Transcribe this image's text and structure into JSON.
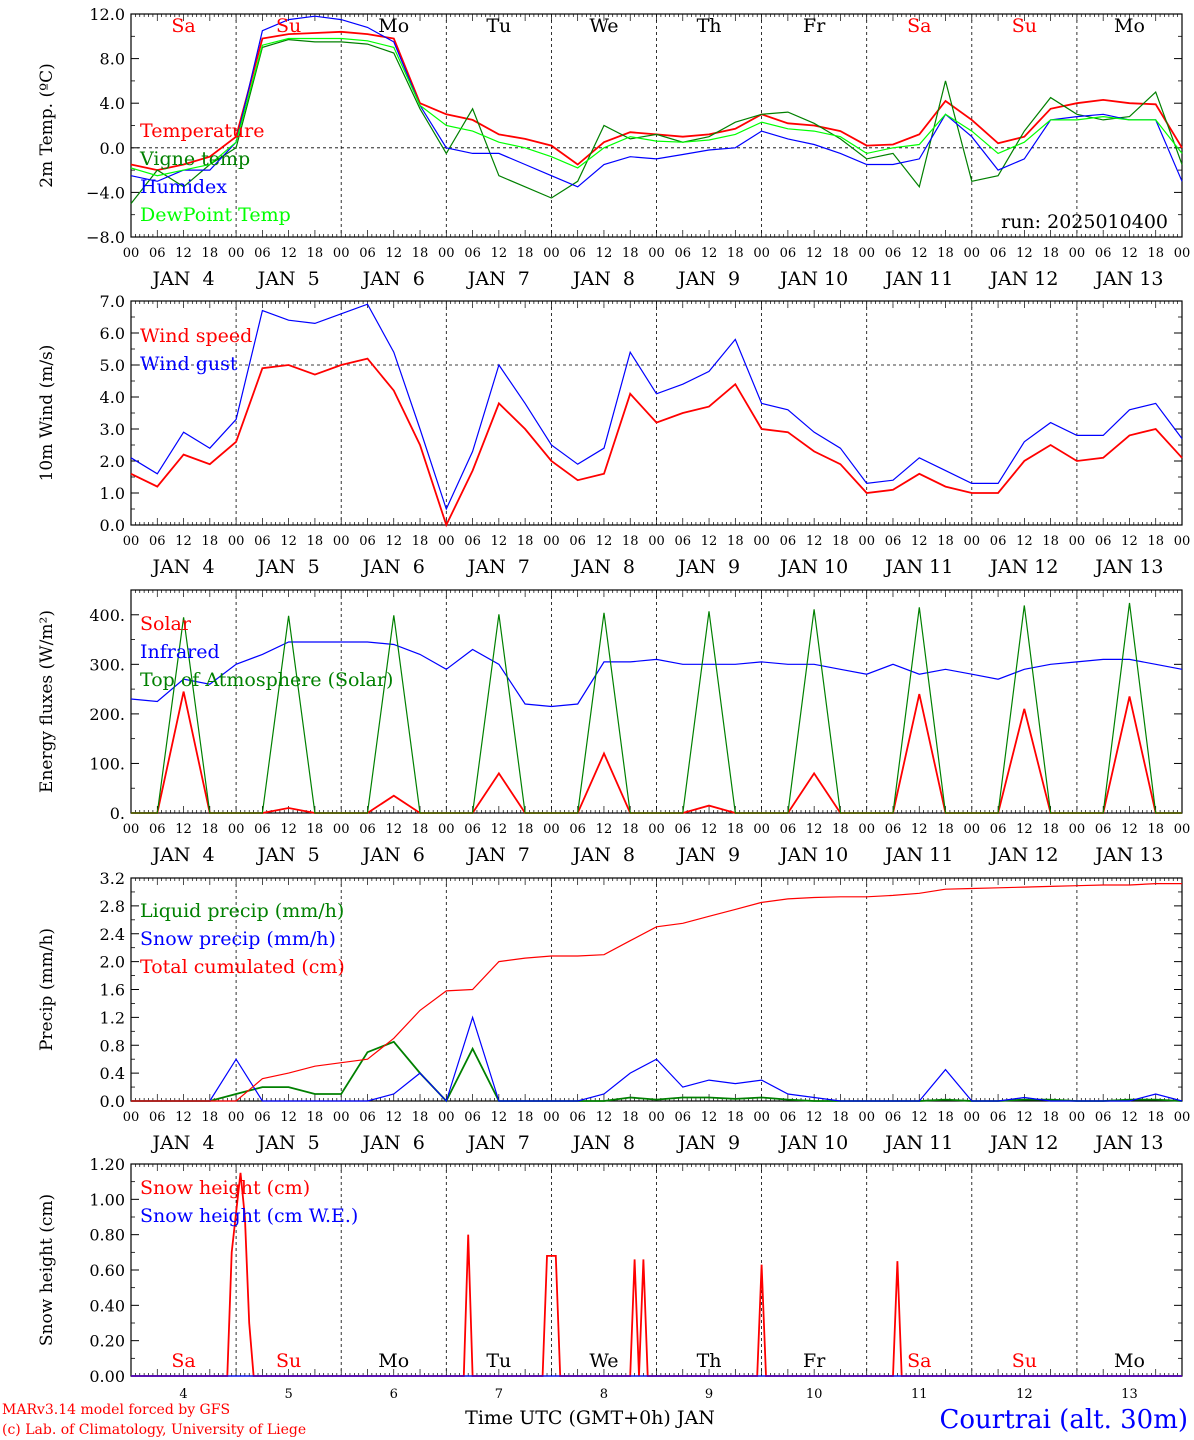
{
  "run_label": "run: 2025010400",
  "footer": {
    "credit_line1": "MARv3.14 model forced by GFS",
    "credit_line2": "(c) Lab. of Climatology, University of Liege",
    "xlabel": "Time UTC (GMT+0h) JAN",
    "station": "Courtrai (alt. 30m)"
  },
  "axis": {
    "hour_ticks": [
      "00",
      "06",
      "12",
      "18",
      "00",
      "06",
      "12",
      "18",
      "00",
      "06",
      "12",
      "18",
      "00",
      "06",
      "12",
      "18",
      "00",
      "06",
      "12",
      "18",
      "00",
      "06",
      "12",
      "18",
      "00",
      "06",
      "12",
      "18",
      "00",
      "06",
      "12",
      "18",
      "00",
      "06",
      "12",
      "18",
      "00",
      "06",
      "12",
      "18",
      "00"
    ],
    "date_labels": [
      "JAN  4",
      "JAN  5",
      "JAN  6",
      "JAN  7",
      "JAN  8",
      "JAN  9",
      "JAN 10",
      "JAN 11",
      "JAN 12",
      "JAN 13"
    ],
    "day_names": [
      "Sa",
      "Su",
      "Mo",
      "Tu",
      "We",
      "Th",
      "Fr",
      "Sa",
      "Su",
      "Mo"
    ],
    "day_numbers": [
      "4",
      "5",
      "6",
      "7",
      "8",
      "9",
      "10",
      "11",
      "12",
      "13"
    ],
    "weekend_color": "#ff0000"
  },
  "chart_data": [
    {
      "type": "line",
      "ylabel": "2m Temp. (ºC)",
      "ylim": [
        -8,
        12
      ],
      "yticks": [
        "12.0",
        "8.0",
        "4.0",
        "0.0",
        "−4.0",
        "−8.0"
      ],
      "x_unit": "hours since 2025-01-04 00 UTC",
      "x": [
        0,
        6,
        12,
        18,
        24,
        30,
        36,
        42,
        48,
        54,
        60,
        66,
        72,
        78,
        84,
        90,
        96,
        102,
        108,
        114,
        120,
        126,
        132,
        138,
        144,
        150,
        156,
        162,
        168,
        174,
        180,
        186,
        192,
        198,
        204,
        210,
        216,
        222,
        228,
        234,
        240
      ],
      "series": [
        {
          "name": "Temperature",
          "color": "#ff0000",
          "values": [
            -1.5,
            -2.0,
            -1.5,
            -0.8,
            1.0,
            9.8,
            10.2,
            10.3,
            10.4,
            10.2,
            9.8,
            4.0,
            3.0,
            2.5,
            1.2,
            0.8,
            0.2,
            -1.5,
            0.5,
            1.4,
            1.2,
            1.0,
            1.2,
            1.7,
            3.0,
            2.2,
            2.0,
            1.5,
            0.2,
            0.3,
            1.2,
            4.2,
            2.5,
            0.4,
            1.0,
            3.5,
            4.0,
            4.3,
            4.0,
            3.9,
            0.0
          ]
        },
        {
          "name": "Vigne temp",
          "color": "#008000",
          "values": [
            -5.0,
            -2.0,
            -3.5,
            -1.5,
            0.0,
            9.0,
            9.7,
            9.5,
            9.5,
            9.3,
            8.5,
            3.5,
            -0.5,
            3.5,
            -2.5,
            -3.5,
            -4.5,
            -3.0,
            2.0,
            0.8,
            1.2,
            0.5,
            1.0,
            2.3,
            3.0,
            3.2,
            2.2,
            0.8,
            -1.0,
            -0.5,
            -3.5,
            6.0,
            -3.0,
            -2.5,
            1.5,
            4.5,
            3.0,
            2.5,
            2.8,
            5.0,
            -1.5
          ]
        },
        {
          "name": "Humidex",
          "color": "#0000ff",
          "values": [
            -2.5,
            -3.0,
            -2.0,
            -2.0,
            0.5,
            10.5,
            11.5,
            11.8,
            11.5,
            10.8,
            9.5,
            3.8,
            0.0,
            -0.5,
            -0.5,
            -1.5,
            -2.5,
            -3.5,
            -1.5,
            -0.8,
            -1.0,
            -0.6,
            -0.2,
            0.0,
            1.5,
            0.8,
            0.3,
            -0.5,
            -1.5,
            -1.5,
            -1.0,
            3.0,
            1.0,
            -2.0,
            -1.0,
            2.5,
            2.8,
            3.0,
            2.5,
            2.5,
            -3.0
          ]
        },
        {
          "name": "DewPoint Temp",
          "color": "#00ff00",
          "values": [
            -1.8,
            -2.5,
            -2.0,
            -1.5,
            0.5,
            9.2,
            9.8,
            9.8,
            9.8,
            9.6,
            9.0,
            3.8,
            2.0,
            1.5,
            0.5,
            0.0,
            -0.8,
            -1.8,
            0.0,
            1.0,
            0.6,
            0.5,
            0.7,
            1.2,
            2.3,
            1.7,
            1.5,
            1.0,
            -0.5,
            0.0,
            0.3,
            3.0,
            1.5,
            -0.5,
            0.5,
            2.5,
            2.5,
            2.8,
            2.5,
            2.5,
            -0.5
          ]
        }
      ]
    },
    {
      "type": "line",
      "ylabel": "10m Wind (m/s)",
      "ylim": [
        0,
        7
      ],
      "yticks": [
        "7.0",
        "6.0",
        "5.0",
        "4.0",
        "3.0",
        "2.0",
        "1.0",
        "0.0"
      ],
      "x_unit": "hours since 2025-01-04 00 UTC",
      "x": [
        0,
        6,
        12,
        18,
        24,
        30,
        36,
        42,
        48,
        54,
        60,
        66,
        72,
        78,
        84,
        90,
        96,
        102,
        108,
        114,
        120,
        126,
        132,
        138,
        144,
        150,
        156,
        162,
        168,
        174,
        180,
        186,
        192,
        198,
        204,
        210,
        216,
        222,
        228,
        234,
        240
      ],
      "series": [
        {
          "name": "Wind speed",
          "color": "#ff0000",
          "values": [
            1.6,
            1.2,
            2.2,
            1.9,
            2.6,
            4.9,
            5.0,
            4.7,
            5.0,
            5.2,
            4.2,
            2.5,
            0.0,
            1.7,
            3.8,
            3.0,
            2.0,
            1.4,
            1.6,
            4.1,
            3.2,
            3.5,
            3.7,
            4.4,
            3.0,
            2.9,
            2.3,
            1.9,
            1.0,
            1.1,
            1.6,
            1.2,
            1.0,
            1.0,
            2.0,
            2.5,
            2.0,
            2.1,
            2.8,
            3.0,
            2.1
          ]
        },
        {
          "name": "Wind gust",
          "color": "#0000ff",
          "values": [
            2.1,
            1.6,
            2.9,
            2.4,
            3.3,
            6.7,
            6.4,
            6.3,
            6.6,
            6.9,
            5.4,
            3.0,
            0.5,
            2.3,
            5.0,
            3.8,
            2.5,
            1.9,
            2.4,
            5.4,
            4.1,
            4.4,
            4.8,
            5.8,
            3.8,
            3.6,
            2.9,
            2.4,
            1.3,
            1.4,
            2.1,
            1.7,
            1.3,
            1.3,
            2.6,
            3.2,
            2.8,
            2.8,
            3.6,
            3.8,
            2.7
          ]
        }
      ]
    },
    {
      "type": "line",
      "ylabel": "Energy fluxes (W/m²)",
      "ylim": [
        0,
        450
      ],
      "yticks": [
        "400.",
        "300.",
        "200.",
        "100.",
        "0."
      ],
      "x_unit": "hours since 2025-01-04 00 UTC",
      "x": [
        0,
        6,
        12,
        18,
        24,
        30,
        36,
        42,
        48,
        54,
        60,
        66,
        72,
        78,
        84,
        90,
        96,
        102,
        108,
        114,
        120,
        126,
        132,
        138,
        144,
        150,
        156,
        162,
        168,
        174,
        180,
        186,
        192,
        198,
        204,
        210,
        216,
        222,
        228,
        234,
        240
      ],
      "series": [
        {
          "name": "Solar",
          "color": "#ff0000",
          "values": [
            0,
            0,
            245,
            0,
            0,
            0,
            10,
            0,
            0,
            0,
            35,
            0,
            0,
            0,
            80,
            0,
            0,
            0,
            120,
            0,
            0,
            0,
            15,
            0,
            0,
            0,
            80,
            0,
            0,
            0,
            240,
            0,
            0,
            0,
            210,
            0,
            0,
            0,
            235,
            0,
            0
          ]
        },
        {
          "name": "Infrared",
          "color": "#0000ff",
          "values": [
            230,
            225,
            270,
            260,
            300,
            320,
            345,
            345,
            345,
            345,
            340,
            320,
            290,
            330,
            300,
            220,
            215,
            220,
            305,
            305,
            310,
            300,
            300,
            300,
            305,
            300,
            300,
            290,
            280,
            300,
            280,
            290,
            280,
            270,
            290,
            300,
            305,
            310,
            310,
            300,
            290
          ]
        },
        {
          "name": "Top of Atmosphere (Solar)",
          "color": "#008000",
          "values": [
            0,
            0,
            395,
            0,
            0,
            0,
            398,
            0,
            0,
            0,
            399,
            0,
            0,
            0,
            401,
            0,
            0,
            0,
            404,
            0,
            0,
            0,
            407,
            0,
            0,
            0,
            411,
            0,
            0,
            0,
            415,
            0,
            0,
            0,
            419,
            0,
            0,
            0,
            424,
            0,
            0
          ]
        }
      ]
    },
    {
      "type": "line",
      "ylabel": "Precip (mm/h)",
      "ylim": [
        0,
        3.2
      ],
      "yticks": [
        "3.2",
        "2.8",
        "2.4",
        "2.0",
        "1.6",
        "1.2",
        "0.8",
        "0.4",
        "0.0"
      ],
      "x_unit": "hours since 2025-01-04 00 UTC",
      "x": [
        0,
        6,
        12,
        18,
        24,
        30,
        36,
        42,
        48,
        54,
        60,
        66,
        72,
        78,
        84,
        90,
        96,
        102,
        108,
        114,
        120,
        126,
        132,
        138,
        144,
        150,
        156,
        162,
        168,
        174,
        180,
        186,
        192,
        198,
        204,
        210,
        216,
        222,
        228,
        234,
        240
      ],
      "series": [
        {
          "name": "Liquid precip (mm/h)",
          "color": "#008000",
          "values": [
            0,
            0,
            0,
            0,
            0.1,
            0.2,
            0.2,
            0.1,
            0.1,
            0.7,
            0.85,
            0.4,
            0,
            0.75,
            0,
            0,
            0,
            0,
            0,
            0.05,
            0.02,
            0.05,
            0.05,
            0.03,
            0.05,
            0.02,
            0,
            0,
            0,
            0,
            0,
            0.02,
            0,
            0,
            0.02,
            0.02,
            0,
            0,
            0.02,
            0.02,
            0
          ]
        },
        {
          "name": "Snow precip (mm/h)",
          "color": "#0000ff",
          "values": [
            0,
            0,
            0,
            0,
            0.6,
            0,
            0,
            0,
            0,
            0,
            0.1,
            0.4,
            0,
            1.2,
            0,
            0,
            0,
            0,
            0.1,
            0.4,
            0.6,
            0.2,
            0.3,
            0.25,
            0.3,
            0.1,
            0.05,
            0,
            0,
            0,
            0,
            0.45,
            0,
            0,
            0.05,
            0,
            0,
            0,
            0,
            0.1,
            0
          ]
        },
        {
          "name": "Total cumulated (cm)",
          "color": "#ff0000",
          "values": [
            0,
            0,
            0,
            0,
            0,
            0.32,
            0.4,
            0.5,
            0.55,
            0.6,
            0.9,
            1.3,
            1.58,
            1.6,
            2.0,
            2.05,
            2.08,
            2.08,
            2.1,
            2.3,
            2.5,
            2.55,
            2.65,
            2.75,
            2.85,
            2.9,
            2.92,
            2.93,
            2.93,
            2.95,
            2.98,
            3.04,
            3.05,
            3.06,
            3.07,
            3.08,
            3.09,
            3.1,
            3.1,
            3.12,
            3.12
          ]
        }
      ]
    },
    {
      "type": "line",
      "ylabel": "Snow height (cm)",
      "ylim": [
        0,
        1.2
      ],
      "yticks": [
        "1.20",
        "1.00",
        "0.80",
        "0.60",
        "0.40",
        "0.20",
        "0.00"
      ],
      "x_unit": "hours since 2025-01-04 00 UTC",
      "x": [
        0,
        6,
        12,
        18,
        22,
        23,
        25,
        26,
        27,
        28,
        30,
        36,
        42,
        48,
        54,
        60,
        66,
        72,
        76,
        77,
        78,
        84,
        90,
        94,
        95,
        97,
        98,
        99,
        108,
        114,
        115,
        116,
        117,
        118,
        119,
        120,
        126,
        132,
        138,
        143,
        144,
        145,
        150,
        156,
        162,
        168,
        174,
        175,
        176,
        177,
        180,
        186,
        192,
        198,
        204,
        210,
        216,
        222,
        228,
        234,
        240
      ],
      "series": [
        {
          "name": "Snow height (cm)",
          "color": "#ff0000",
          "values": [
            0,
            0,
            0,
            0,
            0,
            0.7,
            1.15,
            0.9,
            0.3,
            0,
            0,
            0,
            0,
            0,
            0,
            0,
            0,
            0,
            0,
            0.8,
            0,
            0,
            0,
            0,
            0.68,
            0.68,
            0,
            0,
            0,
            0,
            0.66,
            0,
            0.66,
            0,
            0,
            0,
            0,
            0,
            0,
            0,
            0.63,
            0,
            0,
            0,
            0,
            0,
            0,
            0.65,
            0,
            0,
            0,
            0,
            0,
            0,
            0,
            0,
            0,
            0,
            0,
            0,
            0
          ]
        },
        {
          "name": "Snow height (cm W.E.)",
          "color": "#0000ff",
          "values": [
            0,
            0,
            0,
            0,
            0,
            0,
            0,
            0,
            0,
            0,
            0,
            0,
            0,
            0,
            0,
            0,
            0,
            0,
            0,
            0,
            0,
            0,
            0,
            0,
            0,
            0,
            0,
            0,
            0,
            0,
            0,
            0,
            0,
            0,
            0,
            0,
            0,
            0,
            0,
            0,
            0,
            0,
            0,
            0,
            0,
            0,
            0,
            0,
            0,
            0,
            0,
            0,
            0,
            0,
            0,
            0,
            0,
            0,
            0,
            0,
            0
          ]
        }
      ]
    }
  ]
}
